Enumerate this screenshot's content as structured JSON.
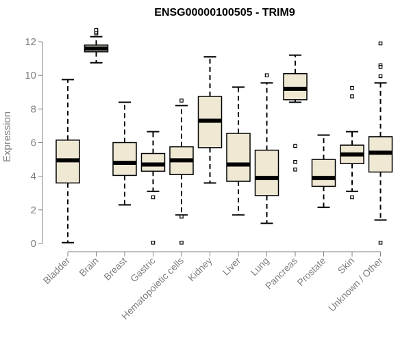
{
  "chart_data": {
    "type": "boxplot",
    "title": "ENSG00000100505 - TRIM9",
    "xlabel": "",
    "ylabel": "Expression",
    "ylim": [
      0,
      12
    ],
    "yticks": [
      0,
      2,
      4,
      6,
      8,
      10,
      12
    ],
    "grid": false,
    "colors": {
      "box_fill": "#efe9d4",
      "stroke": "#000000",
      "axis": "#808080"
    },
    "categories": [
      "Bladder",
      "Brain",
      "Breast",
      "Gastric",
      "Hematopoietic cells",
      "Kidney",
      "Liver",
      "Lung",
      "Pancreas",
      "Prostate",
      "Skin",
      "Unknown / Other"
    ],
    "boxes": [
      {
        "category": "Bladder",
        "min": 0.05,
        "q1": 3.6,
        "median": 4.95,
        "q3": 6.15,
        "max": 9.75,
        "outliers": []
      },
      {
        "category": "Brain",
        "min": 10.75,
        "q1": 11.4,
        "median": 11.6,
        "q3": 11.8,
        "max": 12.3,
        "outliers": [
          12.5,
          12.6,
          12.7
        ]
      },
      {
        "category": "Breast",
        "min": 2.3,
        "q1": 4.05,
        "median": 4.8,
        "q3": 6.0,
        "max": 8.4,
        "outliers": []
      },
      {
        "category": "Gastric",
        "min": 3.1,
        "q1": 4.3,
        "median": 4.7,
        "q3": 5.35,
        "max": 6.65,
        "outliers": [
          2.75,
          0.05
        ]
      },
      {
        "category": "Hematopoietic cells",
        "min": 1.7,
        "q1": 4.1,
        "median": 4.95,
        "q3": 5.75,
        "max": 8.2,
        "outliers": [
          8.5,
          1.6,
          0.05
        ]
      },
      {
        "category": "Kidney",
        "min": 3.6,
        "q1": 5.7,
        "median": 7.3,
        "q3": 8.75,
        "max": 11.1,
        "outliers": []
      },
      {
        "category": "Liver",
        "min": 1.7,
        "q1": 3.7,
        "median": 4.7,
        "q3": 6.55,
        "max": 9.3,
        "outliers": []
      },
      {
        "category": "Lung",
        "min": 1.2,
        "q1": 2.85,
        "median": 3.9,
        "q3": 5.55,
        "max": 9.55,
        "outliers": [
          10.0
        ]
      },
      {
        "category": "Pancreas",
        "min": 8.4,
        "q1": 8.55,
        "median": 9.2,
        "q3": 10.1,
        "max": 11.2,
        "outliers": [
          5.8,
          4.85,
          4.4
        ]
      },
      {
        "category": "Prostate",
        "min": 2.15,
        "q1": 3.4,
        "median": 3.9,
        "q3": 5.0,
        "max": 6.45,
        "outliers": []
      },
      {
        "category": "Skin",
        "min": 3.1,
        "q1": 4.75,
        "median": 5.3,
        "q3": 5.85,
        "max": 6.65,
        "outliers": [
          9.25,
          8.75,
          2.75
        ]
      },
      {
        "category": "Unknown / Other",
        "min": 1.4,
        "q1": 4.25,
        "median": 5.4,
        "q3": 6.35,
        "max": 9.55,
        "outliers": [
          11.9,
          10.6,
          10.5,
          9.95,
          0.05
        ]
      }
    ]
  }
}
